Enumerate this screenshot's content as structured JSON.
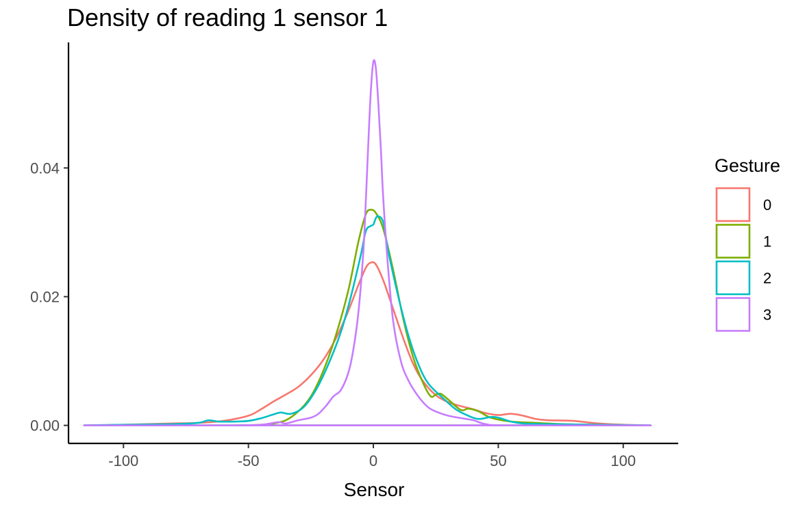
{
  "chart_data": {
    "type": "line",
    "title": "Density of reading 1 sensor 1",
    "xlabel": "Sensor",
    "ylabel": "",
    "xlim": [
      -122,
      122
    ],
    "ylim": [
      -0.0028,
      0.0595
    ],
    "xticks": [
      -100,
      -50,
      0,
      50,
      100
    ],
    "xtick_labels": [
      "-100",
      "-50",
      "0",
      "50",
      "100"
    ],
    "yticks": [
      0,
      0.02,
      0.04
    ],
    "ytick_labels": [
      "0.00",
      "0.02",
      "0.04"
    ],
    "grid": false,
    "legend": {
      "title": "Gesture",
      "position": "right"
    },
    "series": [
      {
        "name": "0",
        "color": "#F8766D",
        "points": [
          [
            -116,
            0
          ],
          [
            -100,
            0.0001
          ],
          [
            -90,
            0.0002
          ],
          [
            -80,
            0.0003
          ],
          [
            -70,
            0.0004
          ],
          [
            -60,
            0.0007
          ],
          [
            -50,
            0.0015
          ],
          [
            -45,
            0.0025
          ],
          [
            -40,
            0.0037
          ],
          [
            -35,
            0.0048
          ],
          [
            -30,
            0.006
          ],
          [
            -25,
            0.0078
          ],
          [
            -20,
            0.0102
          ],
          [
            -15,
            0.0135
          ],
          [
            -10,
            0.0178
          ],
          [
            -6,
            0.0218
          ],
          [
            -3,
            0.0245
          ],
          [
            -1,
            0.0253
          ],
          [
            1,
            0.025
          ],
          [
            4,
            0.0225
          ],
          [
            8,
            0.018
          ],
          [
            12,
            0.0135
          ],
          [
            16,
            0.0095
          ],
          [
            20,
            0.0068
          ],
          [
            25,
            0.0047
          ],
          [
            30,
            0.0036
          ],
          [
            35,
            0.003
          ],
          [
            40,
            0.0025
          ],
          [
            45,
            0.0019
          ],
          [
            50,
            0.0016
          ],
          [
            55,
            0.0018
          ],
          [
            60,
            0.0015
          ],
          [
            65,
            0.001
          ],
          [
            70,
            0.0008
          ],
          [
            80,
            0.0007
          ],
          [
            90,
            0.0003
          ],
          [
            100,
            0.0001
          ],
          [
            111,
            0
          ]
        ]
      },
      {
        "name": "1",
        "color": "#7CAE00",
        "points": [
          [
            -116,
            0
          ],
          [
            -70,
            0
          ],
          [
            -55,
            0
          ],
          [
            -45,
            0.0001
          ],
          [
            -40,
            0.0003
          ],
          [
            -35,
            0.0008
          ],
          [
            -30,
            0.0022
          ],
          [
            -25,
            0.0045
          ],
          [
            -20,
            0.0085
          ],
          [
            -15,
            0.014
          ],
          [
            -10,
            0.021
          ],
          [
            -6,
            0.0285
          ],
          [
            -3,
            0.0328
          ],
          [
            -1,
            0.0335
          ],
          [
            1,
            0.033
          ],
          [
            4,
            0.0305
          ],
          [
            8,
            0.024
          ],
          [
            12,
            0.0165
          ],
          [
            16,
            0.0105
          ],
          [
            20,
            0.0065
          ],
          [
            23,
            0.0045
          ],
          [
            25,
            0.0048
          ],
          [
            27,
            0.0049
          ],
          [
            30,
            0.004
          ],
          [
            35,
            0.0024
          ],
          [
            38,
            0.0026
          ],
          [
            42,
            0.0022
          ],
          [
            47,
            0.0012
          ],
          [
            55,
            0.0006
          ],
          [
            65,
            0.0004
          ],
          [
            75,
            0.0002
          ],
          [
            90,
            0.0001
          ],
          [
            111,
            0
          ]
        ]
      },
      {
        "name": "2",
        "color": "#00BFC4",
        "points": [
          [
            -116,
            0
          ],
          [
            -100,
            0.0001
          ],
          [
            -80,
            0.0002
          ],
          [
            -70,
            0.0004
          ],
          [
            -66,
            0.0008
          ],
          [
            -62,
            0.0006
          ],
          [
            -55,
            0.0006
          ],
          [
            -50,
            0.0007
          ],
          [
            -45,
            0.0011
          ],
          [
            -40,
            0.0017
          ],
          [
            -37,
            0.002
          ],
          [
            -33,
            0.0018
          ],
          [
            -28,
            0.0028
          ],
          [
            -23,
            0.0055
          ],
          [
            -18,
            0.0095
          ],
          [
            -13,
            0.0145
          ],
          [
            -9,
            0.02
          ],
          [
            -5,
            0.0265
          ],
          [
            -3,
            0.0302
          ],
          [
            -1,
            0.031
          ],
          [
            0,
            0.0312
          ],
          [
            1,
            0.0322
          ],
          [
            2,
            0.0325
          ],
          [
            4,
            0.0315
          ],
          [
            6,
            0.027
          ],
          [
            10,
            0.02
          ],
          [
            14,
            0.014
          ],
          [
            18,
            0.0095
          ],
          [
            22,
            0.0065
          ],
          [
            28,
            0.0042
          ],
          [
            33,
            0.0025
          ],
          [
            38,
            0.0015
          ],
          [
            42,
            0.001
          ],
          [
            47,
            0.0013
          ],
          [
            50,
            0.0012
          ],
          [
            55,
            0.0006
          ],
          [
            60,
            0.0003
          ],
          [
            70,
            0.0002
          ],
          [
            90,
            0.0001
          ],
          [
            111,
            0
          ]
        ]
      },
      {
        "name": "3",
        "color": "#C77CFF",
        "points": [
          [
            -116,
            0
          ],
          [
            -70,
            0
          ],
          [
            -55,
            0
          ],
          [
            -45,
            0.0001
          ],
          [
            -38,
            0.0005
          ],
          [
            -35,
            0.0003
          ],
          [
            -30,
            0.0008
          ],
          [
            -25,
            0.0012
          ],
          [
            -22,
            0.0018
          ],
          [
            -19,
            0.003
          ],
          [
            -16,
            0.0045
          ],
          [
            -13,
            0.0055
          ],
          [
            -10,
            0.0082
          ],
          [
            -8,
            0.0118
          ],
          [
            -6,
            0.0175
          ],
          [
            -4,
            0.027
          ],
          [
            -3,
            0.035
          ],
          [
            -2,
            0.044
          ],
          [
            -1,
            0.052
          ],
          [
            0,
            0.0565
          ],
          [
            1,
            0.0555
          ],
          [
            2,
            0.05
          ],
          [
            3,
            0.043
          ],
          [
            4,
            0.035
          ],
          [
            6,
            0.024
          ],
          [
            8,
            0.016
          ],
          [
            11,
            0.01
          ],
          [
            14,
            0.007
          ],
          [
            18,
            0.0045
          ],
          [
            22,
            0.0028
          ],
          [
            26,
            0.002
          ],
          [
            30,
            0.0015
          ],
          [
            34,
            0.0012
          ],
          [
            40,
            0.0008
          ],
          [
            45,
            0.0002
          ],
          [
            55,
            0
          ],
          [
            111,
            0
          ]
        ]
      }
    ]
  }
}
